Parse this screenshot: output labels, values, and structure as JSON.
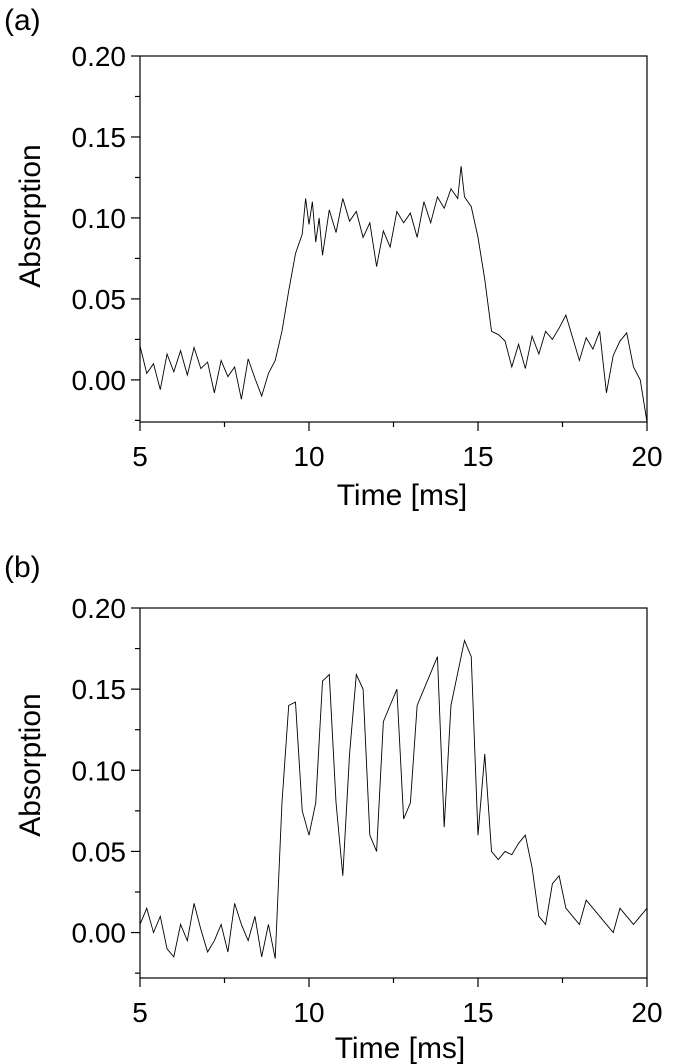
{
  "chart_data": [
    {
      "type": "line",
      "panel_label": "(a)",
      "xlabel": "Time [ms]",
      "ylabel": "Absorption",
      "xlim": [
        5,
        20
      ],
      "ylim": [
        -0.026,
        0.2
      ],
      "xticks": [
        "5",
        "10",
        "15",
        "20"
      ],
      "yticks": [
        "0.00",
        "0.05",
        "0.10",
        "0.15",
        "0.20"
      ],
      "grid": false,
      "series": [
        {
          "x": [
            5.0,
            5.2,
            5.4,
            5.6,
            5.8,
            6.0,
            6.2,
            6.4,
            6.6,
            6.8,
            7.0,
            7.2,
            7.4,
            7.6,
            7.8,
            8.0,
            8.2,
            8.4,
            8.6,
            8.8,
            9.0,
            9.2,
            9.4,
            9.6,
            9.8,
            9.9,
            10.0,
            10.1,
            10.2,
            10.3,
            10.4,
            10.6,
            10.8,
            11.0,
            11.2,
            11.4,
            11.6,
            11.8,
            12.0,
            12.2,
            12.4,
            12.6,
            12.8,
            13.0,
            13.2,
            13.4,
            13.6,
            13.8,
            14.0,
            14.2,
            14.4,
            14.5,
            14.6,
            14.8,
            15.0,
            15.2,
            15.4,
            15.6,
            15.8,
            16.0,
            16.2,
            16.4,
            16.6,
            16.8,
            17.0,
            17.2,
            17.4,
            17.6,
            17.8,
            18.0,
            18.2,
            18.4,
            18.6,
            18.8,
            19.0,
            19.2,
            19.4,
            19.6,
            19.8,
            20.0
          ],
          "y": [
            0.021,
            0.004,
            0.01,
            -0.006,
            0.016,
            0.005,
            0.018,
            0.003,
            0.02,
            0.007,
            0.011,
            -0.008,
            0.012,
            0.002,
            0.008,
            -0.012,
            0.013,
            0.001,
            -0.01,
            0.004,
            0.012,
            0.03,
            0.055,
            0.078,
            0.09,
            0.112,
            0.096,
            0.11,
            0.085,
            0.1,
            0.077,
            0.105,
            0.091,
            0.112,
            0.098,
            0.104,
            0.088,
            0.097,
            0.07,
            0.092,
            0.082,
            0.104,
            0.097,
            0.103,
            0.088,
            0.11,
            0.097,
            0.113,
            0.106,
            0.118,
            0.112,
            0.132,
            0.113,
            0.107,
            0.088,
            0.062,
            0.03,
            0.028,
            0.024,
            0.008,
            0.022,
            0.007,
            0.027,
            0.016,
            0.03,
            0.025,
            0.032,
            0.04,
            0.026,
            0.012,
            0.026,
            0.019,
            0.03,
            -0.008,
            0.015,
            0.024,
            0.029,
            0.008,
            0.0,
            -0.026
          ]
        }
      ]
    },
    {
      "type": "line",
      "panel_label": "(b)",
      "xlabel": "Time [ms]",
      "ylabel": "Absorption",
      "xlim": [
        5,
        20
      ],
      "ylim": [
        -0.028,
        0.2
      ],
      "xticks": [
        "5",
        "10",
        "15",
        "20"
      ],
      "yticks": [
        "0.00",
        "0.05",
        "0.10",
        "0.15",
        "0.20"
      ],
      "grid": false,
      "series": [
        {
          "x": [
            5.0,
            5.2,
            5.4,
            5.6,
            5.8,
            6.0,
            6.2,
            6.4,
            6.6,
            6.8,
            7.0,
            7.2,
            7.4,
            7.6,
            7.8,
            8.0,
            8.2,
            8.4,
            8.6,
            8.8,
            9.0,
            9.2,
            9.4,
            9.6,
            9.8,
            10.0,
            10.2,
            10.4,
            10.6,
            10.8,
            11.0,
            11.2,
            11.4,
            11.6,
            11.8,
            12.0,
            12.2,
            12.4,
            12.6,
            12.8,
            13.0,
            13.2,
            13.4,
            13.6,
            13.8,
            14.0,
            14.2,
            14.4,
            14.6,
            14.8,
            15.0,
            15.2,
            15.4,
            15.6,
            15.8,
            16.0,
            16.2,
            16.4,
            16.6,
            16.8,
            17.0,
            17.2,
            17.4,
            17.6,
            17.8,
            18.0,
            18.2,
            18.4,
            18.6,
            18.8,
            19.0,
            19.2,
            19.4,
            19.6,
            19.8,
            20.0
          ],
          "y": [
            0.005,
            0.015,
            0.0,
            0.01,
            -0.01,
            -0.015,
            0.005,
            -0.005,
            0.018,
            0.002,
            -0.012,
            -0.005,
            0.005,
            -0.012,
            0.018,
            0.005,
            -0.005,
            0.01,
            -0.015,
            0.005,
            -0.016,
            0.08,
            0.14,
            0.142,
            0.075,
            0.06,
            0.08,
            0.155,
            0.159,
            0.08,
            0.035,
            0.11,
            0.159,
            0.15,
            0.06,
            0.05,
            0.13,
            0.14,
            0.15,
            0.07,
            0.08,
            0.14,
            0.15,
            0.16,
            0.17,
            0.065,
            0.14,
            0.16,
            0.18,
            0.17,
            0.06,
            0.11,
            0.05,
            0.045,
            0.05,
            0.048,
            0.055,
            0.06,
            0.04,
            0.01,
            0.005,
            0.03,
            0.035,
            0.015,
            0.01,
            0.005,
            0.02,
            0.015,
            0.01,
            0.005,
            0.0,
            0.015,
            0.01,
            0.005,
            0.01,
            0.015
          ]
        }
      ]
    }
  ]
}
